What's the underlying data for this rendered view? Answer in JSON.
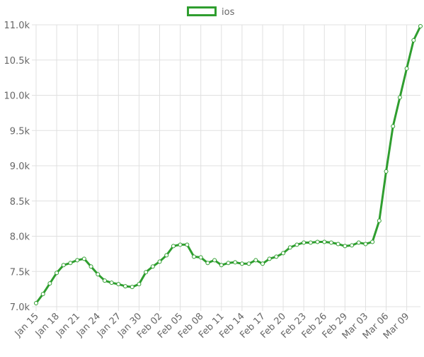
{
  "chart_data": {
    "type": "line",
    "categories": [
      "Jan 15",
      null,
      null,
      "Jan 18",
      null,
      null,
      "Jan 21",
      null,
      null,
      "Jan 24",
      null,
      null,
      "Jan 27",
      null,
      null,
      "Jan 30",
      null,
      null,
      "Feb 02",
      null,
      null,
      "Feb 05",
      null,
      null,
      "Feb 08",
      null,
      null,
      "Feb 11",
      null,
      null,
      "Feb 14",
      null,
      null,
      "Feb 17",
      null,
      null,
      "Feb 20",
      null,
      null,
      "Feb 23",
      null,
      null,
      "Feb 26",
      null,
      null,
      "Feb 29",
      null,
      null,
      "Mar 03",
      null,
      null,
      "Mar 06",
      null,
      null,
      "Mar 09",
      null,
      null
    ],
    "series": [
      {
        "name": "ios",
        "color": "#2f9e2f",
        "values": [
          7050,
          7180,
          7330,
          7480,
          7590,
          7620,
          7660,
          7680,
          7570,
          7460,
          7370,
          7340,
          7320,
          7290,
          7280,
          7320,
          7490,
          7570,
          7640,
          7730,
          7860,
          7880,
          7880,
          7710,
          7700,
          7620,
          7660,
          7590,
          7620,
          7630,
          7610,
          7610,
          7660,
          7610,
          7680,
          7710,
          7760,
          7840,
          7880,
          7910,
          7910,
          7920,
          7920,
          7910,
          7890,
          7860,
          7870,
          7910,
          7890,
          7920,
          8220,
          8920,
          9560,
          9970,
          10380,
          10780,
          10980
        ]
      }
    ],
    "ylim": [
      7000,
      11000
    ],
    "yticks": [
      {
        "value": 7000,
        "label": "7.0k"
      },
      {
        "value": 7500,
        "label": "7.5k"
      },
      {
        "value": 8000,
        "label": "8.0k"
      },
      {
        "value": 8500,
        "label": "8.5k"
      },
      {
        "value": 9000,
        "label": "9.0k"
      },
      {
        "value": 9500,
        "label": "9.5k"
      },
      {
        "value": 10000,
        "label": "10.0k"
      },
      {
        "value": 10500,
        "label": "10.5k"
      },
      {
        "value": 11000,
        "label": "11.0k"
      }
    ],
    "grid": true,
    "legend": "top"
  }
}
